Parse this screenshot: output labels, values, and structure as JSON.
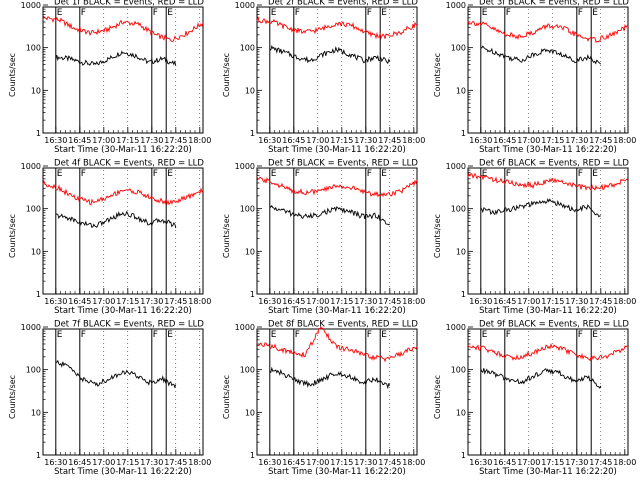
{
  "figure": {
    "xlabel": "Start Time (30-Mar-11 16:22:20)",
    "ylabel": "Counts/sec",
    "x_tick_labels": [
      "16:30",
      "16:45",
      "17:00",
      "17:15",
      "17:30",
      "17:45",
      "18:00"
    ],
    "y_tick_labels": [
      "1",
      "10",
      "100",
      "1000"
    ],
    "marker_labels": [
      "E",
      "F",
      "F",
      "E"
    ],
    "colors": {
      "events": "#000000",
      "lld": "#ff0000",
      "markers": "#000000"
    }
  },
  "chart_data": [
    {
      "type": "line",
      "title": "Det 1f BLACK = Events, RED = LLD",
      "x_range_minutes": [
        0,
        100
      ],
      "ylim": [
        1,
        1000
      ],
      "y_scale": "log",
      "x_tick_minutes": [
        8,
        23,
        38,
        53,
        68,
        83,
        98
      ],
      "markers_minutes": [
        8,
        23,
        68,
        77
      ],
      "series": [
        {
          "name": "Events",
          "color": "#000000",
          "x_start": 8,
          "x_end": 83,
          "values": [
            60,
            55,
            45,
            40,
            55,
            80,
            65,
            45,
            55,
            40
          ]
        },
        {
          "name": "LLD",
          "color": "#ff0000",
          "x_start": 0,
          "x_end": 100,
          "values": [
            500,
            450,
            280,
            220,
            260,
            400,
            350,
            200,
            150,
            220,
            380
          ]
        }
      ]
    },
    {
      "type": "line",
      "title": "Det 2f BLACK = Events, RED = LLD",
      "x_range_minutes": [
        0,
        100
      ],
      "ylim": [
        1,
        1000
      ],
      "y_scale": "log",
      "x_tick_minutes": [
        8,
        23,
        38,
        53,
        68,
        83,
        98
      ],
      "markers_minutes": [
        8,
        23,
        68,
        77
      ],
      "series": [
        {
          "name": "Events",
          "color": "#000000",
          "x_start": 8,
          "x_end": 83,
          "values": [
            100,
            80,
            60,
            50,
            70,
            90,
            70,
            50,
            60,
            45
          ]
        },
        {
          "name": "LLD",
          "color": "#ff0000",
          "x_start": 0,
          "x_end": 100,
          "values": [
            450,
            400,
            280,
            230,
            270,
            380,
            320,
            210,
            180,
            230,
            360
          ]
        }
      ]
    },
    {
      "type": "line",
      "title": "Det 3f BLACK = Events, RED = LLD",
      "x_range_minutes": [
        0,
        100
      ],
      "ylim": [
        1,
        1000
      ],
      "y_scale": "log",
      "x_tick_minutes": [
        8,
        23,
        38,
        53,
        68,
        83,
        98
      ],
      "markers_minutes": [
        8,
        23,
        68,
        77
      ],
      "series": [
        {
          "name": "Events",
          "color": "#000000",
          "x_start": 8,
          "x_end": 83,
          "values": [
            100,
            80,
            60,
            50,
            70,
            90,
            70,
            50,
            60,
            40
          ]
        },
        {
          "name": "LLD",
          "color": "#ff0000",
          "x_start": 0,
          "x_end": 100,
          "values": [
            400,
            350,
            230,
            180,
            220,
            330,
            280,
            180,
            150,
            200,
            320
          ]
        }
      ]
    },
    {
      "type": "line",
      "title": "Det 4f BLACK = Events, RED = LLD",
      "x_range_minutes": [
        0,
        100
      ],
      "ylim": [
        1,
        1000
      ],
      "y_scale": "log",
      "x_tick_minutes": [
        8,
        23,
        38,
        53,
        68,
        83,
        98
      ],
      "markers_minutes": [
        8,
        23,
        68,
        77
      ],
      "series": [
        {
          "name": "Events",
          "color": "#000000",
          "x_start": 8,
          "x_end": 83,
          "values": [
            70,
            60,
            45,
            40,
            55,
            80,
            65,
            45,
            55,
            40
          ]
        },
        {
          "name": "LLD",
          "color": "#ff0000",
          "x_start": 0,
          "x_end": 100,
          "values": [
            400,
            300,
            180,
            140,
            180,
            280,
            240,
            160,
            140,
            180,
            280
          ]
        }
      ]
    },
    {
      "type": "line",
      "title": "Det 5f BLACK = Events, RED = LLD",
      "x_range_minutes": [
        0,
        100
      ],
      "ylim": [
        1,
        1000
      ],
      "y_scale": "log",
      "x_tick_minutes": [
        8,
        23,
        38,
        53,
        68,
        83,
        98
      ],
      "markers_minutes": [
        8,
        23,
        68,
        77
      ],
      "series": [
        {
          "name": "Events",
          "color": "#000000",
          "x_start": 8,
          "x_end": 83,
          "values": [
            110,
            90,
            70,
            65,
            80,
            100,
            85,
            65,
            70,
            40
          ]
        },
        {
          "name": "LLD",
          "color": "#ff0000",
          "x_start": 0,
          "x_end": 100,
          "values": [
            500,
            420,
            280,
            240,
            260,
            350,
            300,
            230,
            210,
            260,
            420
          ]
        }
      ]
    },
    {
      "type": "line",
      "title": "Det 6f BLACK = Events, RED = LLD",
      "x_range_minutes": [
        0,
        100
      ],
      "ylim": [
        1,
        1000
      ],
      "y_scale": "log",
      "x_tick_minutes": [
        8,
        23,
        38,
        53,
        68,
        83,
        98
      ],
      "markers_minutes": [
        8,
        23,
        68,
        77
      ],
      "series": [
        {
          "name": "Events",
          "color": "#000000",
          "x_start": 8,
          "x_end": 83,
          "values": [
            100,
            80,
            95,
            110,
            130,
            150,
            130,
            90,
            110,
            60
          ]
        },
        {
          "name": "LLD",
          "color": "#ff0000",
          "x_start": 0,
          "x_end": 100,
          "values": [
            600,
            550,
            450,
            380,
            350,
            450,
            420,
            320,
            300,
            350,
            500
          ]
        }
      ]
    },
    {
      "type": "line",
      "title": "Det 7f BLACK = Events, RED = LLD",
      "x_range_minutes": [
        0,
        100
      ],
      "ylim": [
        1,
        1000
      ],
      "y_scale": "log",
      "x_tick_minutes": [
        8,
        23,
        38,
        53,
        68,
        83,
        98
      ],
      "markers_minutes": [
        8,
        23,
        68,
        77
      ],
      "series": [
        {
          "name": "Events",
          "color": "#000000",
          "x_start": 8,
          "x_end": 83,
          "values": [
            150,
            120,
            60,
            45,
            60,
            90,
            75,
            50,
            60,
            40
          ]
        }
      ]
    },
    {
      "type": "line",
      "title": "Det 8f BLACK = Events, RED = LLD",
      "x_range_minutes": [
        0,
        100
      ],
      "ylim": [
        1,
        1000
      ],
      "y_scale": "log",
      "x_tick_minutes": [
        8,
        23,
        38,
        53,
        68,
        83,
        98
      ],
      "markers_minutes": [
        8,
        23,
        68,
        77
      ],
      "series": [
        {
          "name": "Events",
          "color": "#000000",
          "x_start": 8,
          "x_end": 83,
          "values": [
            100,
            80,
            55,
            45,
            60,
            85,
            70,
            50,
            60,
            40
          ]
        },
        {
          "name": "LLD",
          "color": "#ff0000",
          "x_start": 0,
          "x_end": 100,
          "values": [
            400,
            350,
            260,
            220,
            1000,
            330,
            280,
            200,
            180,
            230,
            360
          ]
        }
      ]
    },
    {
      "type": "line",
      "title": "Det 9f BLACK = Events, RED = LLD",
      "x_range_minutes": [
        0,
        100
      ],
      "ylim": [
        1,
        1000
      ],
      "y_scale": "log",
      "x_tick_minutes": [
        8,
        23,
        38,
        53,
        68,
        83,
        98
      ],
      "markers_minutes": [
        8,
        23,
        68,
        77
      ],
      "series": [
        {
          "name": "Events",
          "color": "#000000",
          "x_start": 8,
          "x_end": 83,
          "values": [
            100,
            80,
            60,
            50,
            70,
            100,
            80,
            55,
            65,
            40
          ]
        },
        {
          "name": "LLD",
          "color": "#ff0000",
          "x_start": 0,
          "x_end": 100,
          "values": [
            350,
            320,
            230,
            190,
            240,
            360,
            300,
            200,
            180,
            230,
            360
          ]
        }
      ]
    }
  ]
}
